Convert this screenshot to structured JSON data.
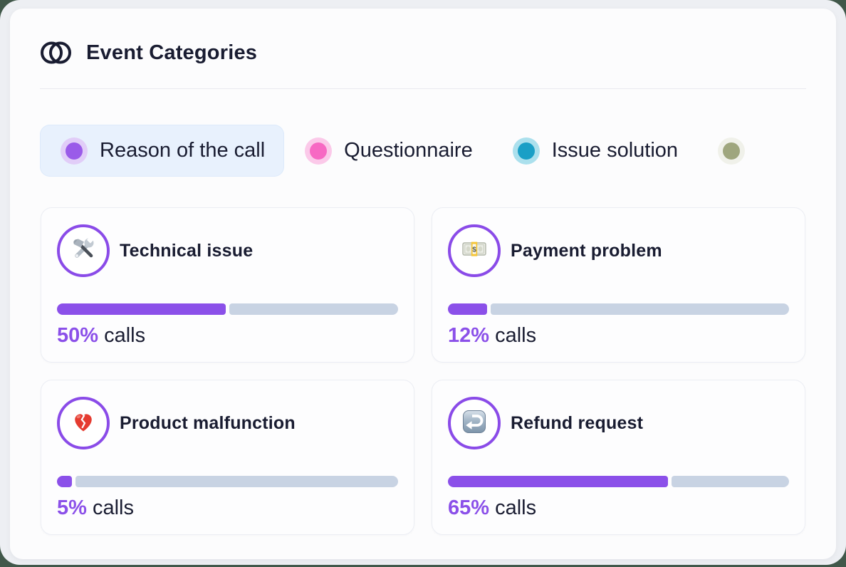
{
  "theme": {
    "page_edge_green": "#41584a",
    "canvas_bg": "#edeff3",
    "panel_bg": "#fcfcfd",
    "card_bg": "#fdfdfe",
    "card_border": "#eceef4",
    "text_dark": "#191c31",
    "divider": "#e9eaef",
    "accent_purple": "#8b50e9",
    "bar_track": "#c8d3e3",
    "selected_tab_bg": "#e8f1fd"
  },
  "header": {
    "title": "Event Categories",
    "icon": "overlapping-circles-icon"
  },
  "tabs": [
    {
      "label": "Reason of the call",
      "selected": true,
      "dot_color": "#9a5be9",
      "halo_color": "#e1cdf8"
    },
    {
      "label": "Questionnaire",
      "selected": false,
      "dot_color": "#f768c3",
      "halo_color": "#fbc9e9"
    },
    {
      "label": "Issue solution",
      "selected": false,
      "dot_color": "#1a9fc6",
      "halo_color": "#abe0ed"
    },
    {
      "label": "",
      "selected": false,
      "dot_color": "#9fa67e",
      "halo_color": "#f0f1ea",
      "partially_visible": true
    }
  ],
  "cards": [
    {
      "title": "Technical issue",
      "icon": "hammer-and-wrench-icon",
      "percent": 50,
      "percent_label": "50%",
      "unit_label": "calls"
    },
    {
      "title": "Payment problem",
      "icon": "dollar-banknote-icon",
      "percent": 12,
      "percent_label": "12%",
      "unit_label": "calls"
    },
    {
      "title": "Product malfunction",
      "icon": "broken-heart-icon",
      "percent": 5,
      "percent_label": "5%",
      "unit_label": "calls"
    },
    {
      "title": "Refund request",
      "icon": "return-arrow-icon",
      "percent": 65,
      "percent_label": "65%",
      "unit_label": "calls"
    }
  ],
  "chart_data": {
    "type": "bar",
    "title": "Event Categories — Reason of the call",
    "categories": [
      "Technical issue",
      "Payment problem",
      "Product malfunction",
      "Refund request"
    ],
    "values": [
      50,
      12,
      5,
      65
    ],
    "unit": "% calls",
    "ylim": [
      0,
      100
    ]
  }
}
